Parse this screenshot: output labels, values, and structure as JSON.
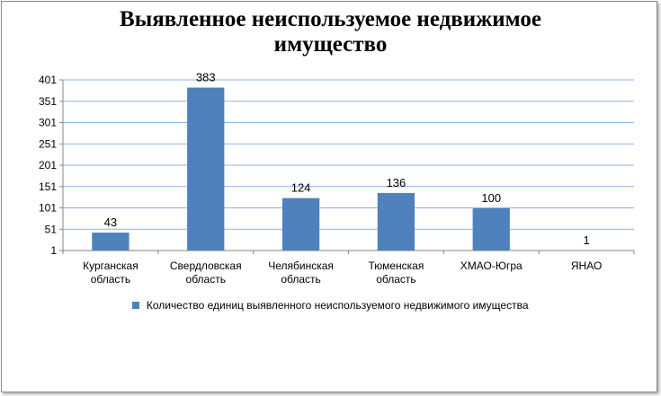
{
  "title_line1": "Выявленное неиспользуемое недвижимое",
  "title_line2": "имущество",
  "chart_data": {
    "type": "bar",
    "title": "Выявленное неиспользуемое недвижимое имущество",
    "categories": [
      [
        "Курганская",
        "область"
      ],
      [
        "Свердловская",
        "область"
      ],
      [
        "Челябинская",
        "область"
      ],
      [
        "Тюменская",
        "область"
      ],
      [
        "ХМАО-Югра"
      ],
      [
        "ЯНАО"
      ]
    ],
    "series": [
      {
        "name": "Количество единиц выявленного неиспользуемого недвижимого имущества",
        "values": [
          43,
          383,
          124,
          136,
          100,
          1
        ],
        "color": "#4f81bd"
      }
    ],
    "yticks": [
      "1",
      "51",
      "101",
      "151",
      "201",
      "251",
      "301",
      "351",
      "401"
    ],
    "ylim": [
      1,
      401
    ],
    "grid": true,
    "legend": "bottom",
    "data_labels": true
  }
}
